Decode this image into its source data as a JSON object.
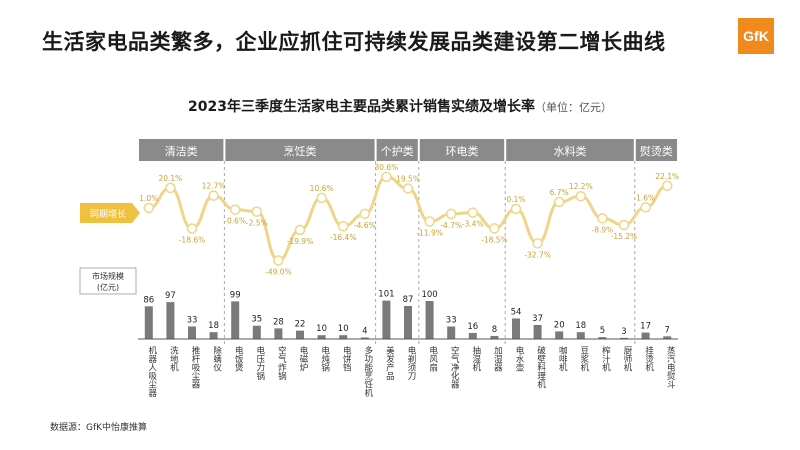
{
  "headline": "生活家电品类繁多，企业应抓住可持续发展品类建设第二增长曲线",
  "logo": "GfK",
  "source": "数据源：GfK中怡康推算",
  "colors": {
    "accent": "#f0c040",
    "line": "#f0d488",
    "bar": "#7a7a7a",
    "header": "#8a8a8a"
  },
  "chart_data": {
    "type": "bar",
    "title": "2023年三季度生活家电主要品类累计销售实绩及增长率",
    "unit": "（单位：亿元）",
    "growth_label": "同期增长",
    "size_label_1": "市场规模",
    "size_label_2": "(亿元)",
    "groups": [
      {
        "name": "清洁类",
        "count": 4
      },
      {
        "name": "烹饪类",
        "count": 7
      },
      {
        "name": "个护类",
        "count": 2
      },
      {
        "name": "环电类",
        "count": 4
      },
      {
        "name": "水料类",
        "count": 6
      },
      {
        "name": "熨烫类",
        "count": 2
      }
    ],
    "categories": [
      "机器人吸尘器",
      "洗地机",
      "推杆吸尘器",
      "除螨仪",
      "电饭煲",
      "电压力锅",
      "空气炸锅",
      "电磁炉",
      "电炖锅",
      "电饼铛",
      "多功能烹饪机",
      "美发产品",
      "电剃须刀",
      "电风扇",
      "空气净化器",
      "抽湿机",
      "加湿器",
      "电水壶",
      "破壁料理机",
      "咖啡机",
      "豆浆机",
      "榨汁机",
      "厨师机",
      "挂烫机",
      "蒸汽电熨斗"
    ],
    "market_size": [
      86,
      97,
      33,
      18,
      99,
      35,
      28,
      22,
      10,
      10,
      4,
      101,
      87,
      100,
      33,
      16,
      8,
      54,
      37,
      20,
      18,
      5,
      3,
      17,
      7
    ],
    "growth": [
      1.0,
      20.1,
      -18.6,
      12.7,
      -0.6,
      -2.5,
      -49.0,
      -19.9,
      10.6,
      -16.4,
      -4.6,
      30.6,
      19.5,
      -11.9,
      -4.7,
      -3.4,
      -18.5,
      0.1,
      -32.7,
      6.7,
      12.2,
      -8.9,
      -15.2,
      1.6,
      22.1
    ],
    "growth_labels": [
      "1.0%",
      "20.1%",
      "-18.6%",
      "12.7%",
      "-0.6%",
      "-2.5%",
      "-49.0%",
      "-19.9%",
      "10.6%",
      "-16.4%",
      "-4.6%",
      "30.6%",
      "19.5%",
      "-11.9%",
      "-4.7%",
      "-3.4%",
      "-18.5%",
      "0.1%",
      "-32.7%",
      "6.7%",
      "12.2%",
      "-8.9%",
      "-15.2%",
      "1.6%",
      "22.1%"
    ]
  }
}
